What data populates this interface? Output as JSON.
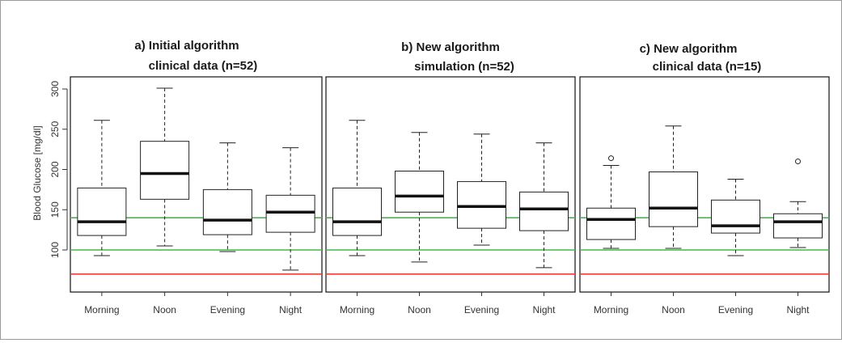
{
  "figure": {
    "ylabel": "Blood Glucose [mg/dl]",
    "reference_lines": [
      {
        "value": 140,
        "color": "#44b84a"
      },
      {
        "value": 100,
        "color": "#44b84a"
      },
      {
        "value": 70,
        "color": "#e8403a"
      }
    ]
  },
  "chart_data": [
    {
      "type": "boxplot",
      "title_line1": "a) Initial algorithm",
      "title_line2": "clinical data (n=52)",
      "ylabel": "Blood Glucose [mg/dl]",
      "ylim": [
        50,
        310
      ],
      "yticks": [
        100,
        150,
        200,
        250,
        300
      ],
      "categories": [
        "Morning",
        "Noon",
        "Evening",
        "Night"
      ],
      "boxes": [
        {
          "whisker_low": 93,
          "q1": 118,
          "median": 135,
          "q3": 177,
          "whisker_high": 261,
          "outliers": []
        },
        {
          "whisker_low": 105,
          "q1": 163,
          "median": 195,
          "q3": 235,
          "whisker_high": 301,
          "outliers": []
        },
        {
          "whisker_low": 98,
          "q1": 119,
          "median": 137,
          "q3": 175,
          "whisker_high": 233,
          "outliers": []
        },
        {
          "whisker_low": 75,
          "q1": 122,
          "median": 147,
          "q3": 168,
          "whisker_high": 227,
          "outliers": []
        }
      ]
    },
    {
      "type": "boxplot",
      "title_line1": "b) New algorithm",
      "title_line2": "simulation (n=52)",
      "ylim": [
        50,
        310
      ],
      "categories": [
        "Morning",
        "Noon",
        "Evening",
        "Night"
      ],
      "boxes": [
        {
          "whisker_low": 93,
          "q1": 118,
          "median": 135,
          "q3": 177,
          "whisker_high": 261,
          "outliers": []
        },
        {
          "whisker_low": 85,
          "q1": 147,
          "median": 167,
          "q3": 198,
          "whisker_high": 246,
          "outliers": []
        },
        {
          "whisker_low": 106,
          "q1": 127,
          "median": 154,
          "q3": 185,
          "whisker_high": 244,
          "outliers": []
        },
        {
          "whisker_low": 78,
          "q1": 124,
          "median": 151,
          "q3": 172,
          "whisker_high": 233,
          "outliers": []
        }
      ]
    },
    {
      "type": "boxplot",
      "title_line1": "c) New algorithm",
      "title_line2": "clinical data (n=15)",
      "ylim": [
        50,
        310
      ],
      "categories": [
        "Morning",
        "Noon",
        "Evening",
        "Night"
      ],
      "boxes": [
        {
          "whisker_low": 102,
          "q1": 113,
          "median": 138,
          "q3": 152,
          "whisker_high": 205,
          "outliers": [
            214
          ]
        },
        {
          "whisker_low": 102,
          "q1": 129,
          "median": 152,
          "q3": 197,
          "whisker_high": 254,
          "outliers": []
        },
        {
          "whisker_low": 93,
          "q1": 121,
          "median": 130,
          "q3": 162,
          "whisker_high": 188,
          "outliers": []
        },
        {
          "whisker_low": 103,
          "q1": 115,
          "median": 135,
          "q3": 145,
          "whisker_high": 160,
          "outliers": [
            210
          ]
        }
      ]
    }
  ]
}
